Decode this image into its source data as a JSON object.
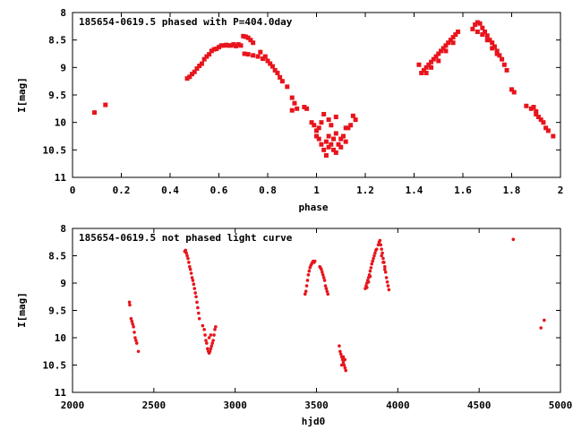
{
  "chart_data": [
    {
      "type": "scatter",
      "title": "185654-0619.5 phased with P=404.0day",
      "xlabel": "phase",
      "ylabel": "I[mag]",
      "xlim": [
        0,
        2
      ],
      "ylim": [
        11,
        8
      ],
      "y_inverted": true,
      "xticks": [
        "0",
        "0.2",
        "0.4",
        "0.6",
        "0.8",
        "1",
        "1.2",
        "1.4",
        "1.6",
        "1.8",
        "2"
      ],
      "xtick_values": [
        0,
        0.2,
        0.4,
        0.6,
        0.8,
        1.0,
        1.2,
        1.4,
        1.6,
        1.8,
        2.0
      ],
      "yticks": [
        "8",
        "8.5",
        "9",
        "9.5",
        "10",
        "10.5",
        "11"
      ],
      "ytick_values": [
        8,
        8.5,
        9,
        9.5,
        10,
        10.5,
        11
      ],
      "marker_color": "#e8141c",
      "series": [
        {
          "points": [
            [
              0.09,
              9.82
            ],
            [
              0.135,
              9.68
            ],
            [
              0.47,
              9.2
            ],
            [
              0.48,
              9.17
            ],
            [
              0.49,
              9.12
            ],
            [
              0.5,
              9.08
            ],
            [
              0.51,
              9.02
            ],
            [
              0.52,
              8.97
            ],
            [
              0.53,
              8.93
            ],
            [
              0.54,
              8.85
            ],
            [
              0.55,
              8.8
            ],
            [
              0.56,
              8.76
            ],
            [
              0.57,
              8.7
            ],
            [
              0.58,
              8.67
            ],
            [
              0.59,
              8.66
            ],
            [
              0.6,
              8.63
            ],
            [
              0.61,
              8.6
            ],
            [
              0.62,
              8.6
            ],
            [
              0.63,
              8.59
            ],
            [
              0.64,
              8.6
            ],
            [
              0.65,
              8.6
            ],
            [
              0.66,
              8.58
            ],
            [
              0.67,
              8.61
            ],
            [
              0.68,
              8.58
            ],
            [
              0.69,
              8.6
            ],
            [
              0.7,
              8.43
            ],
            [
              0.71,
              8.44
            ],
            [
              0.72,
              8.46
            ],
            [
              0.73,
              8.5
            ],
            [
              0.74,
              8.55
            ],
            [
              0.705,
              8.75
            ],
            [
              0.72,
              8.76
            ],
            [
              0.74,
              8.78
            ],
            [
              0.76,
              8.8
            ],
            [
              0.78,
              8.84
            ],
            [
              0.77,
              8.72
            ],
            [
              0.79,
              8.8
            ],
            [
              0.8,
              8.88
            ],
            [
              0.81,
              8.93
            ],
            [
              0.82,
              8.98
            ],
            [
              0.83,
              9.05
            ],
            [
              0.84,
              9.1
            ],
            [
              0.85,
              9.18
            ],
            [
              0.86,
              9.25
            ],
            [
              0.88,
              9.35
            ],
            [
              0.9,
              9.55
            ],
            [
              0.91,
              9.65
            ],
            [
              0.92,
              9.75
            ],
            [
              0.9,
              9.78
            ],
            [
              0.95,
              9.72
            ],
            [
              0.96,
              9.75
            ],
            [
              0.98,
              10.0
            ],
            [
              0.99,
              10.05
            ],
            [
              1.0,
              10.15
            ],
            [
              1.0,
              10.25
            ],
            [
              1.01,
              10.1
            ],
            [
              1.02,
              10.0
            ],
            [
              1.03,
              9.85
            ],
            [
              1.01,
              10.3
            ],
            [
              1.02,
              10.4
            ],
            [
              1.03,
              10.5
            ],
            [
              1.04,
              10.35
            ],
            [
              1.04,
              10.6
            ],
            [
              1.05,
              10.45
            ],
            [
              1.05,
              10.25
            ],
            [
              1.06,
              10.4
            ],
            [
              1.07,
              10.3
            ],
            [
              1.07,
              10.5
            ],
            [
              1.08,
              10.2
            ],
            [
              1.08,
              10.55
            ],
            [
              1.09,
              10.4
            ],
            [
              1.1,
              10.3
            ],
            [
              1.1,
              10.45
            ],
            [
              1.11,
              10.25
            ],
            [
              1.12,
              10.1
            ],
            [
              1.12,
              10.35
            ],
            [
              1.13,
              10.1
            ],
            [
              1.14,
              10.05
            ],
            [
              1.15,
              9.88
            ],
            [
              1.16,
              9.95
            ],
            [
              1.06,
              10.05
            ],
            [
              1.08,
              9.9
            ],
            [
              1.05,
              9.95
            ],
            [
              1.42,
              8.95
            ],
            [
              1.43,
              9.1
            ],
            [
              1.44,
              9.05
            ],
            [
              1.45,
              9.0
            ],
            [
              1.46,
              8.95
            ],
            [
              1.47,
              8.9
            ],
            [
              1.48,
              8.85
            ],
            [
              1.49,
              8.8
            ],
            [
              1.5,
              8.75
            ],
            [
              1.51,
              8.7
            ],
            [
              1.52,
              8.65
            ],
            [
              1.53,
              8.6
            ],
            [
              1.54,
              8.55
            ],
            [
              1.55,
              8.5
            ],
            [
              1.56,
              8.45
            ],
            [
              1.57,
              8.4
            ],
            [
              1.58,
              8.35
            ],
            [
              1.45,
              9.1
            ],
            [
              1.47,
              9.0
            ],
            [
              1.5,
              8.88
            ],
            [
              1.53,
              8.7
            ],
            [
              1.56,
              8.55
            ],
            [
              1.64,
              8.3
            ],
            [
              1.65,
              8.22
            ],
            [
              1.66,
              8.18
            ],
            [
              1.67,
              8.2
            ],
            [
              1.68,
              8.28
            ],
            [
              1.69,
              8.35
            ],
            [
              1.7,
              8.42
            ],
            [
              1.71,
              8.5
            ],
            [
              1.72,
              8.55
            ],
            [
              1.73,
              8.62
            ],
            [
              1.74,
              8.7
            ],
            [
              1.75,
              8.78
            ],
            [
              1.76,
              8.85
            ],
            [
              1.77,
              8.95
            ],
            [
              1.78,
              9.05
            ],
            [
              1.66,
              8.35
            ],
            [
              1.68,
              8.4
            ],
            [
              1.7,
              8.5
            ],
            [
              1.72,
              8.65
            ],
            [
              1.74,
              8.75
            ],
            [
              1.8,
              9.4
            ],
            [
              1.81,
              9.45
            ],
            [
              1.86,
              9.7
            ],
            [
              1.88,
              9.75
            ],
            [
              1.9,
              9.8
            ],
            [
              1.91,
              9.9
            ],
            [
              1.92,
              9.95
            ],
            [
              1.93,
              10.0
            ],
            [
              1.94,
              10.1
            ],
            [
              1.95,
              10.15
            ],
            [
              1.89,
              9.72
            ],
            [
              1.9,
              9.85
            ],
            [
              1.97,
              10.25
            ]
          ]
        }
      ]
    },
    {
      "type": "scatter",
      "title": "185654-0619.5 not phased light curve",
      "xlabel": "hjd0",
      "ylabel": "I[mag]",
      "xlim": [
        2000,
        5000
      ],
      "ylim": [
        11,
        8
      ],
      "y_inverted": true,
      "xticks": [
        "2000",
        "2500",
        "3000",
        "3500",
        "4000",
        "4500",
        "5000"
      ],
      "xtick_values": [
        2000,
        2500,
        3000,
        3500,
        4000,
        4500,
        5000
      ],
      "yticks": [
        "8",
        "8.5",
        "9",
        "9.5",
        "10",
        "10.5",
        "11"
      ],
      "ytick_values": [
        8,
        8.5,
        9,
        9.5,
        10,
        10.5,
        11
      ],
      "marker_color": "#e8141c",
      "series": [
        {
          "points": [
            [
              2350,
              9.35
            ],
            [
              2352,
              9.4
            ],
            [
              2360,
              9.65
            ],
            [
              2365,
              9.7
            ],
            [
              2370,
              9.75
            ],
            [
              2375,
              9.8
            ],
            [
              2380,
              9.9
            ],
            [
              2385,
              10.0
            ],
            [
              2390,
              10.05
            ],
            [
              2395,
              10.1
            ],
            [
              2405,
              10.25
            ],
            [
              2690,
              8.42
            ],
            [
              2695,
              8.4
            ],
            [
              2700,
              8.45
            ],
            [
              2705,
              8.5
            ],
            [
              2710,
              8.55
            ],
            [
              2715,
              8.62
            ],
            [
              2720,
              8.7
            ],
            [
              2725,
              8.75
            ],
            [
              2730,
              8.82
            ],
            [
              2735,
              8.9
            ],
            [
              2740,
              8.95
            ],
            [
              2745,
              9.02
            ],
            [
              2750,
              9.1
            ],
            [
              2755,
              9.18
            ],
            [
              2760,
              9.25
            ],
            [
              2765,
              9.35
            ],
            [
              2770,
              9.45
            ],
            [
              2775,
              9.55
            ],
            [
              2780,
              9.65
            ],
            [
              2800,
              9.78
            ],
            [
              2810,
              9.85
            ],
            [
              2815,
              9.95
            ],
            [
              2820,
              10.05
            ],
            [
              2825,
              10.1
            ],
            [
              2830,
              10.2
            ],
            [
              2835,
              10.25
            ],
            [
              2840,
              10.28
            ],
            [
              2845,
              10.25
            ],
            [
              2850,
              10.2
            ],
            [
              2855,
              10.15
            ],
            [
              2860,
              10.1
            ],
            [
              2865,
              10.05
            ],
            [
              2870,
              9.95
            ],
            [
              2875,
              9.85
            ],
            [
              2880,
              9.8
            ],
            [
              2840,
              10.0
            ],
            [
              2850,
              9.95
            ],
            [
              3430,
              9.2
            ],
            [
              3435,
              9.15
            ],
            [
              3440,
              9.05
            ],
            [
              3445,
              8.95
            ],
            [
              3450,
              8.85
            ],
            [
              3455,
              8.78
            ],
            [
              3460,
              8.72
            ],
            [
              3465,
              8.68
            ],
            [
              3470,
              8.65
            ],
            [
              3475,
              8.62
            ],
            [
              3480,
              8.6
            ],
            [
              3485,
              8.62
            ],
            [
              3490,
              8.6
            ],
            [
              3520,
              8.7
            ],
            [
              3525,
              8.72
            ],
            [
              3530,
              8.75
            ],
            [
              3535,
              8.8
            ],
            [
              3540,
              8.85
            ],
            [
              3545,
              8.9
            ],
            [
              3550,
              8.95
            ],
            [
              3555,
              9.05
            ],
            [
              3560,
              9.1
            ],
            [
              3565,
              9.15
            ],
            [
              3570,
              9.2
            ],
            [
              3640,
              10.15
            ],
            [
              3645,
              10.25
            ],
            [
              3650,
              10.3
            ],
            [
              3655,
              10.35
            ],
            [
              3660,
              10.4
            ],
            [
              3665,
              10.45
            ],
            [
              3670,
              10.5
            ],
            [
              3675,
              10.55
            ],
            [
              3680,
              10.6
            ],
            [
              3655,
              10.5
            ],
            [
              3665,
              10.35
            ],
            [
              3675,
              10.4
            ],
            [
              3800,
              9.1
            ],
            [
              3805,
              9.05
            ],
            [
              3810,
              9.0
            ],
            [
              3815,
              8.95
            ],
            [
              3820,
              8.9
            ],
            [
              3825,
              8.85
            ],
            [
              3830,
              8.78
            ],
            [
              3835,
              8.72
            ],
            [
              3840,
              8.65
            ],
            [
              3845,
              8.6
            ],
            [
              3850,
              8.55
            ],
            [
              3855,
              8.5
            ],
            [
              3860,
              8.45
            ],
            [
              3865,
              8.4
            ],
            [
              3870,
              8.38
            ],
            [
              3810,
              9.08
            ],
            [
              3820,
              8.98
            ],
            [
              3830,
              8.88
            ],
            [
              3880,
              8.3
            ],
            [
              3885,
              8.25
            ],
            [
              3890,
              8.22
            ],
            [
              3895,
              8.3
            ],
            [
              3900,
              8.38
            ],
            [
              3905,
              8.45
            ],
            [
              3910,
              8.55
            ],
            [
              3915,
              8.62
            ],
            [
              3920,
              8.7
            ],
            [
              3925,
              8.8
            ],
            [
              3930,
              8.9
            ],
            [
              3935,
              8.98
            ],
            [
              3940,
              9.05
            ],
            [
              3945,
              9.12
            ],
            [
              3900,
              8.5
            ],
            [
              3910,
              8.62
            ],
            [
              3920,
              8.75
            ],
            [
              4710,
              8.2
            ],
            [
              4880,
              9.82
            ],
            [
              4900,
              9.68
            ]
          ]
        }
      ]
    }
  ]
}
